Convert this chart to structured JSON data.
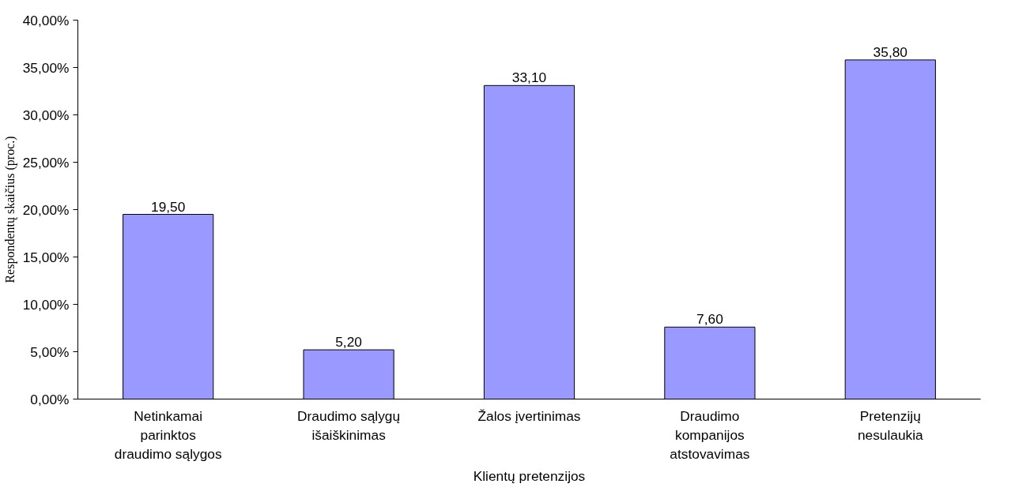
{
  "chart_data": {
    "type": "bar",
    "xlabel": "Klientų pretenzijos",
    "ylabel": "Respondentų skaičius (proc.)",
    "categories": [
      "Netinkamai\nparinktos\ndraudimo sąlygos",
      "Draudimo sąlygų\nišaiškinimas",
      "Žalos įvertinimas",
      "Draudimo\nkompanijos\natstovavimas",
      "Pretenzijų\nnesulaukia"
    ],
    "values": [
      19.5,
      5.2,
      33.1,
      7.6,
      35.8
    ],
    "value_labels": [
      "19,50",
      "5,20",
      "33,10",
      "7,60",
      "35,80"
    ],
    "color": "#9999ff",
    "ylim": [
      0,
      40
    ],
    "yticks": [
      {
        "value": 0,
        "label": "0,00%"
      },
      {
        "value": 5,
        "label": "5,00%"
      },
      {
        "value": 10,
        "label": "10,00%"
      },
      {
        "value": 15,
        "label": "15,00%"
      },
      {
        "value": 20,
        "label": "20,00%"
      },
      {
        "value": 25,
        "label": "25,00%"
      },
      {
        "value": 30,
        "label": "30,00%"
      },
      {
        "value": 35,
        "label": "35,00%"
      },
      {
        "value": 40,
        "label": "40,00%"
      }
    ],
    "grid": false
  }
}
